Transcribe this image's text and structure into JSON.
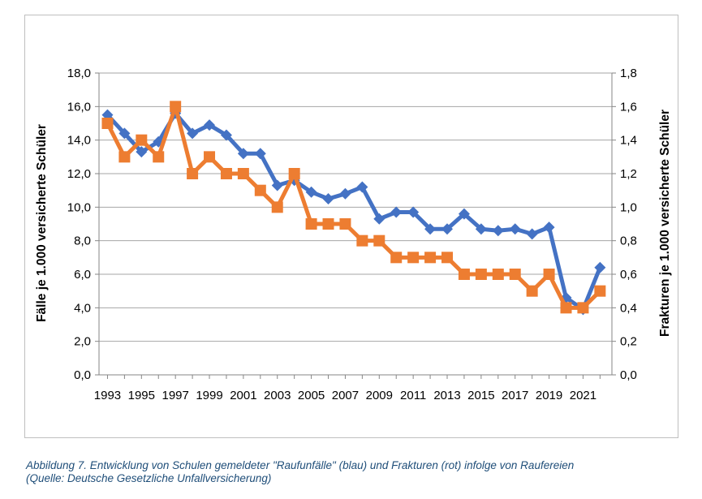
{
  "chart_data": {
    "type": "line",
    "x": [
      1993,
      1994,
      1995,
      1996,
      1997,
      1998,
      1999,
      2000,
      2001,
      2002,
      2003,
      2004,
      2005,
      2006,
      2007,
      2008,
      2009,
      2010,
      2011,
      2012,
      2013,
      2014,
      2015,
      2016,
      2017,
      2018,
      2019,
      2020,
      2021,
      2022
    ],
    "xtick_labels": [
      "1993",
      "1995",
      "1997",
      "1999",
      "2001",
      "2003",
      "2005",
      "2007",
      "2009",
      "2011",
      "2013",
      "2015",
      "2017",
      "2019",
      "2021"
    ],
    "ylabel": "Fälle je 1.000 versicherte Schüler",
    "y2label": "Frakturen je 1.000 versicherte Schüler",
    "ylim": [
      0,
      18
    ],
    "y2lim": [
      0,
      1.8
    ],
    "ytick_labels": [
      "0,0",
      "2,0",
      "4,0",
      "6,0",
      "8,0",
      "10,0",
      "12,0",
      "14,0",
      "16,0",
      "18,0"
    ],
    "y2tick_labels": [
      "0,0",
      "0,2",
      "0,4",
      "0,6",
      "0,8",
      "1,0",
      "1,2",
      "1,4",
      "1,6",
      "1,8"
    ],
    "grid": true,
    "series": [
      {
        "axis": "left",
        "color": "#4472c4",
        "marker": "diamond",
        "values": [
          15.5,
          14.4,
          13.3,
          13.9,
          15.6,
          14.4,
          14.9,
          14.3,
          13.2,
          13.2,
          11.3,
          11.6,
          10.9,
          10.5,
          10.8,
          11.2,
          9.3,
          9.7,
          9.7,
          8.7,
          8.7,
          9.6,
          8.7,
          8.6,
          8.7,
          8.4,
          8.8,
          4.6,
          3.9,
          6.4
        ]
      },
      {
        "axis": "right",
        "color": "#ed7d31",
        "marker": "square",
        "values": [
          1.5,
          1.3,
          1.4,
          1.3,
          1.6,
          1.2,
          1.3,
          1.2,
          1.2,
          1.1,
          1.0,
          1.2,
          0.9,
          0.9,
          0.9,
          0.8,
          0.8,
          0.7,
          0.7,
          0.7,
          0.7,
          0.6,
          0.6,
          0.6,
          0.6,
          0.5,
          0.6,
          0.4,
          0.4,
          0.5
        ]
      }
    ]
  },
  "caption": {
    "line1": "Abbildung 7. Entwicklung von Schulen gemeldeter \"Raufunfälle\" (blau) und Frakturen (rot) infolge von Raufereien",
    "line2": "(Quelle: Deutsche Gesetzliche Unfallversicherung)"
  }
}
